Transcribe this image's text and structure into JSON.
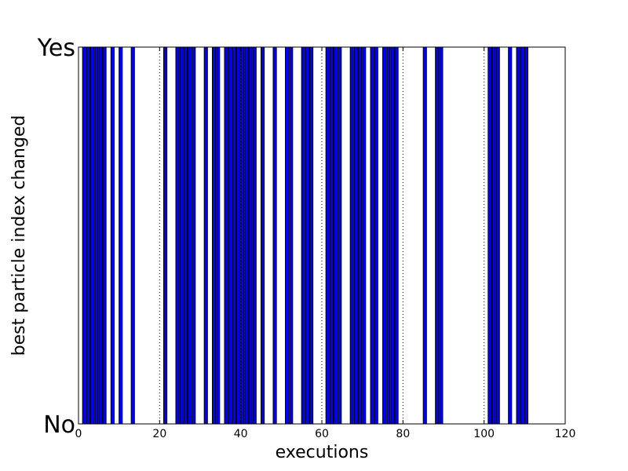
{
  "chart_data": {
    "type": "bar",
    "title": "",
    "xlabel": "executions",
    "ylabel": "best particle index changed",
    "xlim": [
      0,
      120
    ],
    "ylim": [
      0,
      1
    ],
    "x_ticks": [
      0,
      20,
      40,
      60,
      80,
      100,
      120
    ],
    "y_tick_labels": [
      "No",
      "Yes"
    ],
    "grid": "vertical dotted lines at x ticks",
    "bar_color": "#0000ff",
    "bar_edge_color": "#000000",
    "bar_width": 1,
    "x": [
      1,
      2,
      3,
      4,
      5,
      6,
      8,
      10,
      13,
      21,
      24,
      25,
      26,
      27,
      28,
      31,
      33,
      34,
      36,
      37,
      38,
      39,
      40,
      41,
      42,
      43,
      45,
      48,
      51,
      52,
      55,
      56,
      57,
      61,
      62,
      63,
      64,
      67,
      68,
      69,
      70,
      72,
      73,
      75,
      76,
      77,
      78,
      85,
      88,
      89,
      101,
      102,
      103,
      106,
      108,
      109,
      110
    ],
    "values": [
      1,
      1,
      1,
      1,
      1,
      1,
      1,
      1,
      1,
      1,
      1,
      1,
      1,
      1,
      1,
      1,
      1,
      1,
      1,
      1,
      1,
      1,
      1,
      1,
      1,
      1,
      1,
      1,
      1,
      1,
      1,
      1,
      1,
      1,
      1,
      1,
      1,
      1,
      1,
      1,
      1,
      1,
      1,
      1,
      1,
      1,
      1,
      1,
      1,
      1,
      1,
      1,
      1,
      1,
      1,
      1,
      1
    ]
  }
}
